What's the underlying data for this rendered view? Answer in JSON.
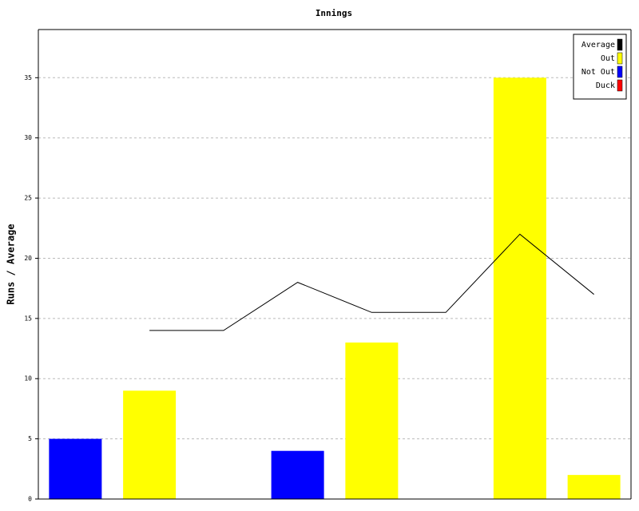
{
  "chart_data": {
    "type": "bar",
    "title": "Innings",
    "y_label": "Runs / Average",
    "categories": [
      null,
      null,
      null,
      null,
      null,
      null,
      null,
      null
    ],
    "series": [
      {
        "name": "Average",
        "color": "#000000",
        "type": "line",
        "values": [
          null,
          14,
          14,
          18,
          15.5,
          15.5,
          22,
          17
        ]
      },
      {
        "name": "Out",
        "color": "#ffff00",
        "type": "bar",
        "values": [
          null,
          9,
          null,
          null,
          13,
          null,
          35,
          2
        ]
      },
      {
        "name": "Not Out",
        "color": "#0000ff",
        "type": "bar",
        "values": [
          5,
          null,
          null,
          4,
          null,
          null,
          null,
          null
        ]
      },
      {
        "name": "Duck",
        "color": "#ff0000",
        "type": "bar",
        "values": [
          null,
          null,
          null,
          null,
          null,
          null,
          null,
          null
        ]
      }
    ],
    "ylim": [
      0,
      39
    ],
    "yticks": [
      0,
      5,
      10,
      15,
      20,
      25,
      30,
      35
    ],
    "grid": true,
    "legend": "top-right"
  }
}
